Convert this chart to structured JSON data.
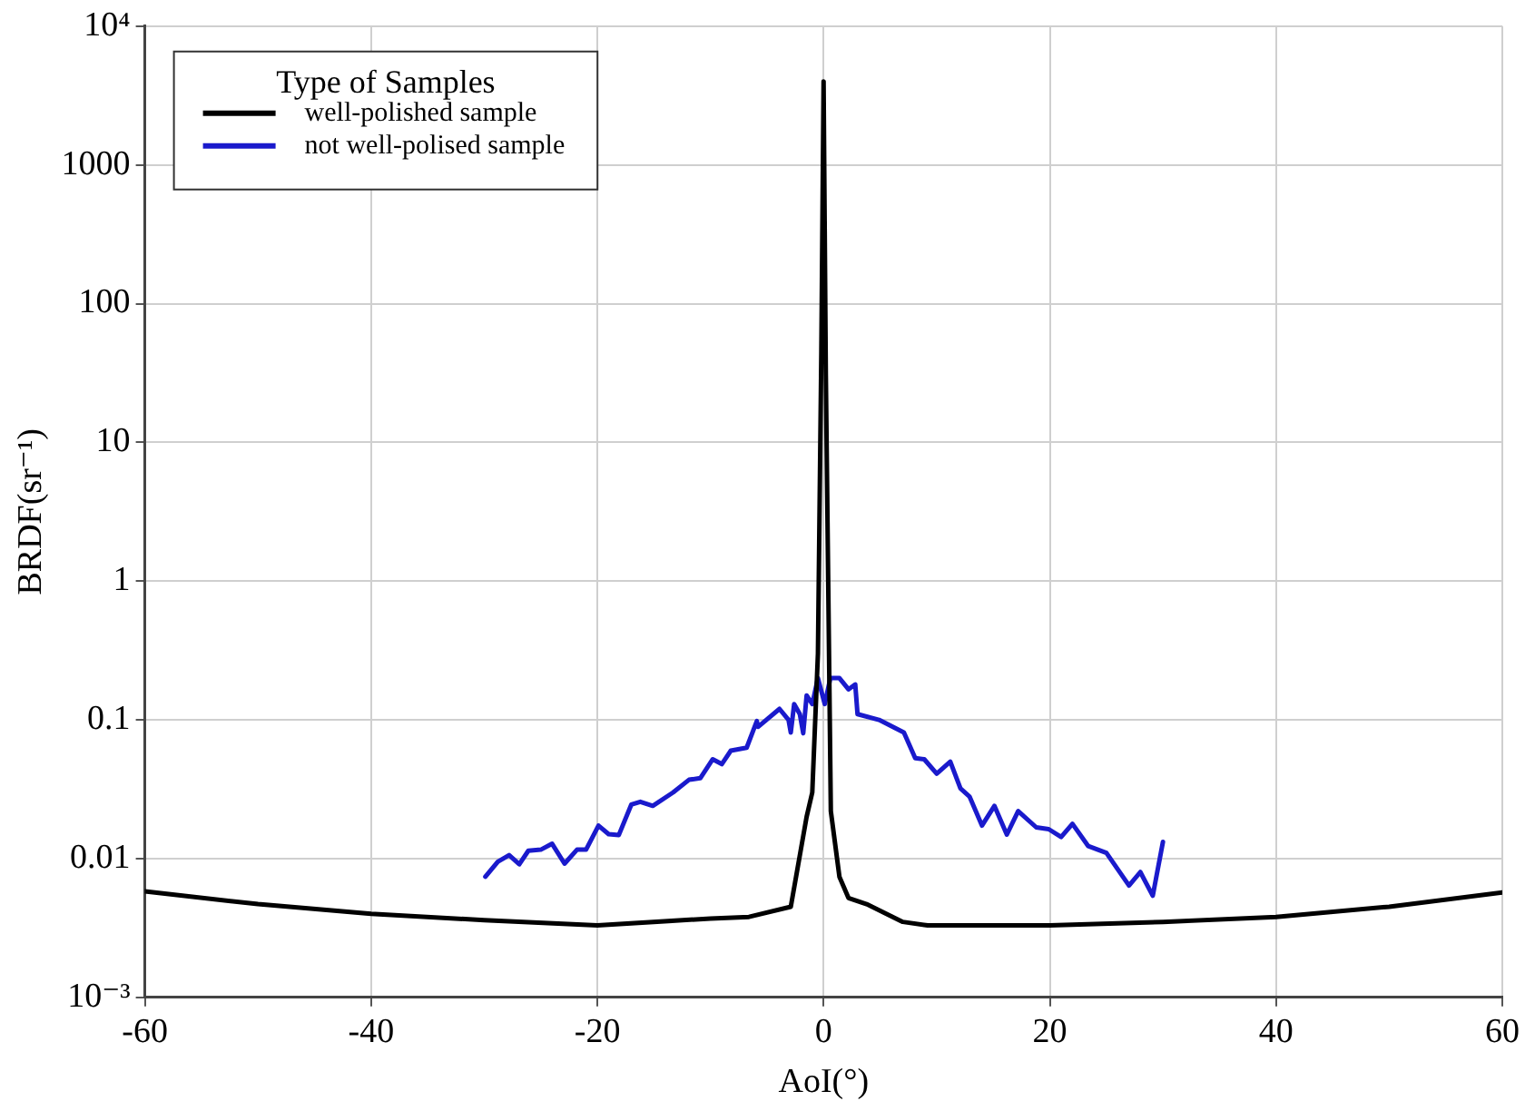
{
  "chart_data": {
    "type": "line",
    "xlabel": "AoI(°)",
    "ylabel": "BRDF(sr⁻¹)",
    "legend_title": "Type of Samples",
    "legend": "top left",
    "grid": true,
    "log": "y",
    "marker": "none",
    "line_style": "solid",
    "xlim": [
      -60,
      60
    ],
    "xticks": [
      -60,
      -40,
      -20,
      0,
      20,
      40,
      60
    ],
    "ylim": [
      0.001,
      10000
    ],
    "yticks": [
      {
        "value": 0.001,
        "label": "10⁻³"
      },
      0.01,
      0.1,
      1,
      10,
      100,
      1000,
      {
        "value": 10000,
        "label": "10⁴"
      }
    ],
    "series": [
      {
        "name": "well-polished sample",
        "color": "#000000",
        "x": [
          -60,
          -50,
          -40,
          -30,
          -20,
          -10,
          -6.6,
          -2.9,
          -1.5,
          -1,
          -0.5,
          -0.2,
          0,
          0.2,
          0.64,
          1.4,
          2.2,
          3.8,
          7,
          9.2,
          20,
          30,
          40,
          50,
          60
        ],
        "values": [
          0.0058,
          0.0047,
          0.004,
          0.0036,
          0.0033,
          0.0037,
          0.0038,
          0.0045,
          0.02,
          0.03,
          0.3,
          45,
          4000,
          30,
          0.022,
          0.0074,
          0.0052,
          0.0047,
          0.0035,
          0.0033,
          0.0033,
          0.0035,
          0.0038,
          0.0045,
          0.0057
        ]
      },
      {
        "name": "not well-polised sample",
        "color": "#1a1acc",
        "x": [
          -29.9,
          -28.8,
          -27.8,
          -26.9,
          -26.1,
          -25,
          -24,
          -22.9,
          -21.8,
          -21,
          -19.9,
          -19,
          -18.1,
          -17,
          -16.2,
          -15.1,
          -13.3,
          -11.9,
          -10.9,
          -9.8,
          -9,
          -8.2,
          -6.8,
          -5.9,
          -5.8,
          -3.9,
          -3.1,
          -2.9,
          -2.6,
          -2.1,
          -1.8,
          -1.5,
          -1,
          -0.5,
          0.1,
          0.6,
          1.4,
          2.2,
          2.8,
          3,
          4.9,
          7.1,
          8.1,
          8.9,
          10,
          11.2,
          12.1,
          12.9,
          14,
          15.1,
          16.2,
          17.2,
          18.8,
          19.9,
          21,
          22,
          23.4,
          25,
          27,
          28,
          29.1,
          30
        ],
        "values": [
          0.0074,
          0.0095,
          0.0106,
          0.0091,
          0.0114,
          0.0116,
          0.0128,
          0.0092,
          0.0116,
          0.0116,
          0.0173,
          0.015,
          0.0148,
          0.0245,
          0.0257,
          0.024,
          0.03,
          0.037,
          0.038,
          0.052,
          0.048,
          0.06,
          0.063,
          0.098,
          0.089,
          0.12,
          0.1,
          0.081,
          0.13,
          0.11,
          0.08,
          0.15,
          0.13,
          0.2,
          0.13,
          0.2,
          0.2,
          0.166,
          0.18,
          0.11,
          0.1,
          0.081,
          0.053,
          0.052,
          0.041,
          0.05,
          0.032,
          0.028,
          0.0173,
          0.024,
          0.0149,
          0.022,
          0.0168,
          0.0163,
          0.0143,
          0.0178,
          0.0123,
          0.011,
          0.0064,
          0.008,
          0.0054,
          0.0132
        ]
      }
    ]
  }
}
